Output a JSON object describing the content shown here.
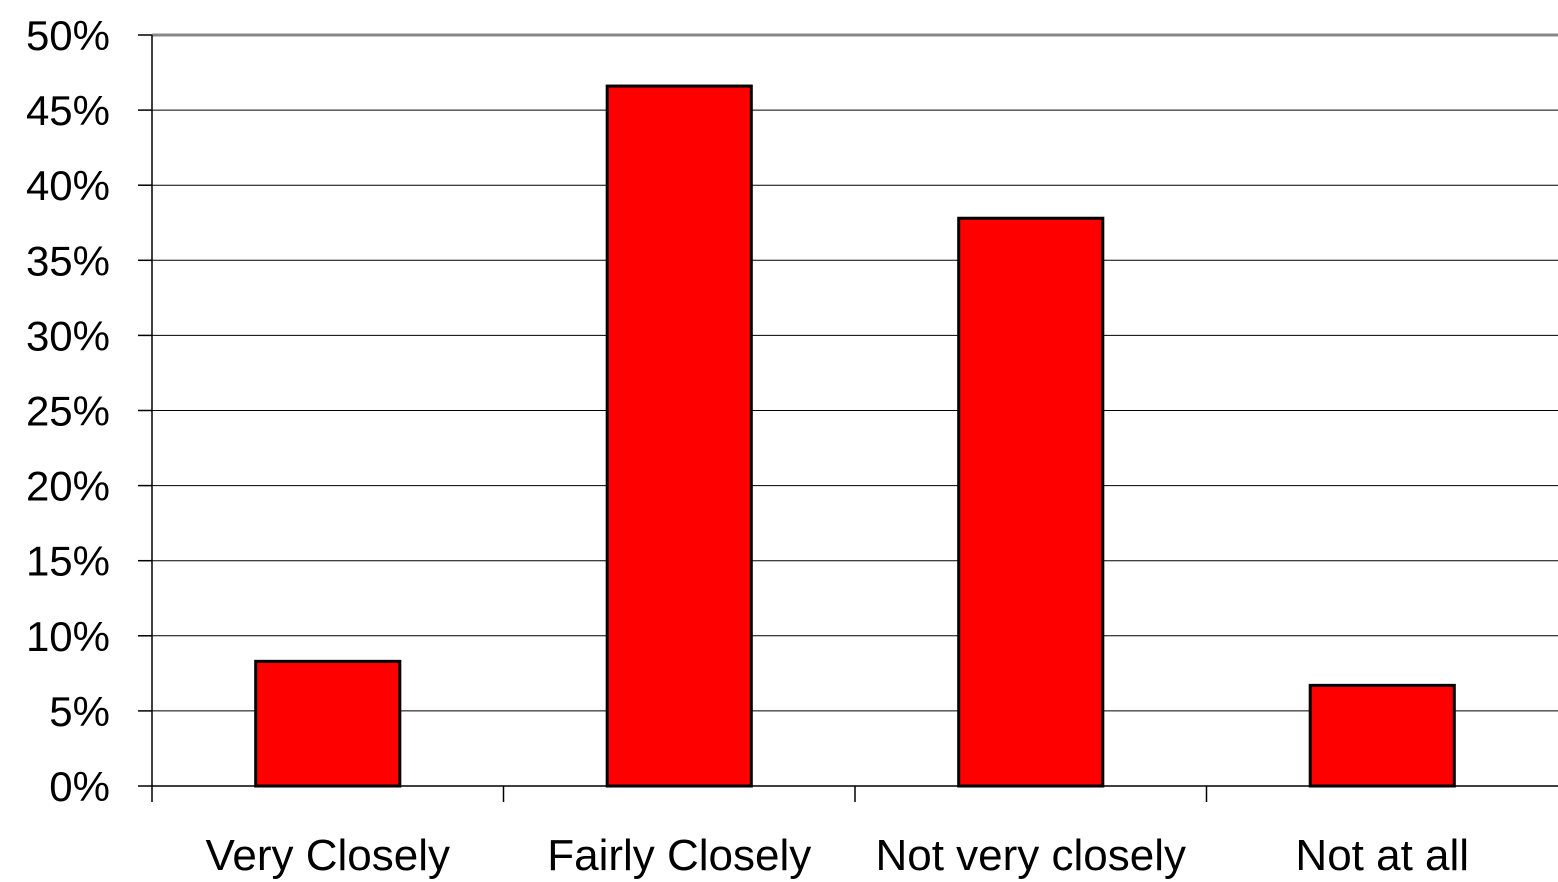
{
  "chart_data": {
    "type": "bar",
    "title": "",
    "xlabel": "",
    "ylabel": "",
    "categories": [
      "Very Closely",
      "Fairly Closely",
      "Not very closely",
      "Not at all"
    ],
    "values": [
      8.3,
      46.6,
      37.8,
      6.7
    ],
    "ylim": [
      0,
      50
    ],
    "y_ticks": [
      0,
      5,
      10,
      15,
      20,
      25,
      30,
      35,
      40,
      45,
      50
    ],
    "y_tick_labels": [
      "0%",
      "5%",
      "10%",
      "15%",
      "20%",
      "25%",
      "30%",
      "35%",
      "40%",
      "45%",
      "50%"
    ],
    "grid": true,
    "legend": "none",
    "bar_color": "#ff0000",
    "bar_edge_color": "#000000"
  }
}
